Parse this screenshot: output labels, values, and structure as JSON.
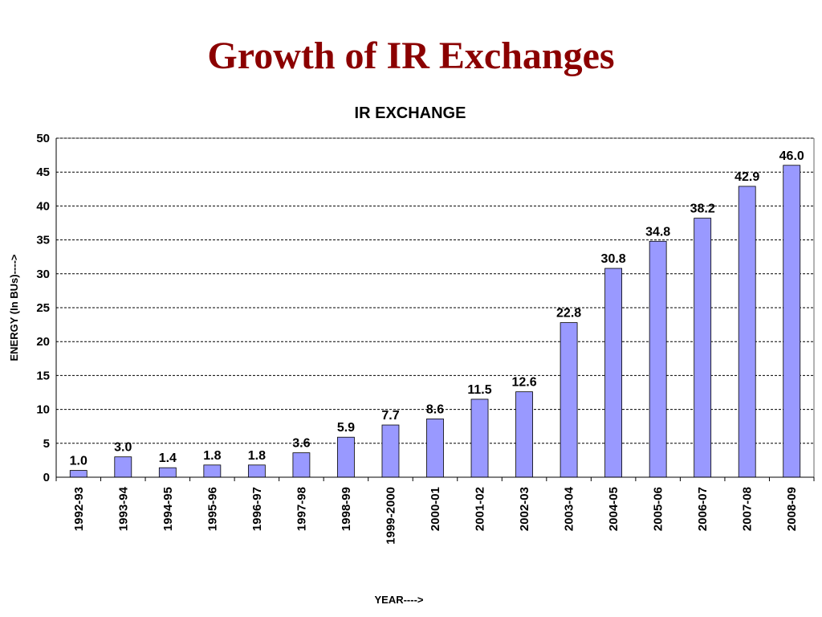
{
  "slide": {
    "title": "Growth of IR Exchanges"
  },
  "colors": {
    "title": "#8b0000",
    "bar_fill": "#9999ff",
    "bar_stroke": "#000000",
    "gridline": "#000000"
  },
  "chart_data": {
    "type": "bar",
    "title": "IR EXCHANGE",
    "xlabel": "YEAR---->",
    "ylabel": "ENERGY (In BUs)---->",
    "ylim": [
      0,
      50
    ],
    "yticks": [
      0,
      5,
      10,
      15,
      20,
      25,
      30,
      35,
      40,
      45,
      50
    ],
    "grid": "horizontal-dashed",
    "legend": "none",
    "categories": [
      "1992-93",
      "1993-94",
      "1994-95",
      "1995-96",
      "1996-97",
      "1997-98",
      "1998-99",
      "1999-2000",
      "2000-01",
      "2001-02",
      "2002-03",
      "2003-04",
      "2004-05",
      "2005-06",
      "2006-07",
      "2007-08",
      "2008-09"
    ],
    "values": [
      1.0,
      3.0,
      1.4,
      1.8,
      1.8,
      3.6,
      5.9,
      7.7,
      8.6,
      11.5,
      12.6,
      22.8,
      30.8,
      34.8,
      38.2,
      42.9,
      46.0
    ],
    "labels": [
      "1.0",
      "3.0",
      "1.4",
      "1.8",
      "1.8",
      "3.6",
      "5.9",
      "7.7",
      "8.6",
      "11.5",
      "12.6",
      "22.8",
      "30.8",
      "34.8",
      "38.2",
      "42.9",
      "46.0"
    ]
  }
}
